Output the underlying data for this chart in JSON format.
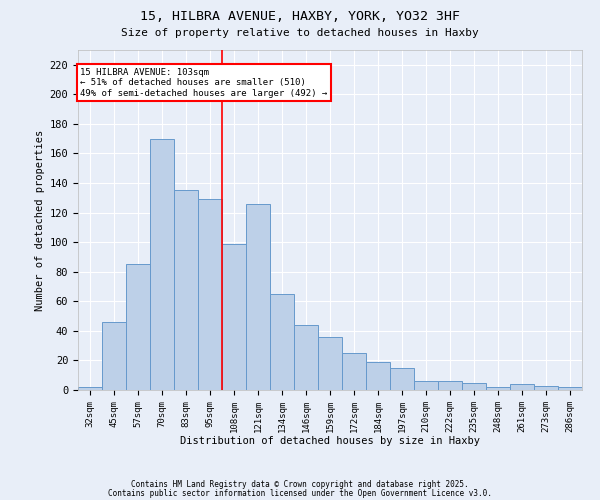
{
  "title1": "15, HILBRA AVENUE, HAXBY, YORK, YO32 3HF",
  "title2": "Size of property relative to detached houses in Haxby",
  "xlabel": "Distribution of detached houses by size in Haxby",
  "ylabel": "Number of detached properties",
  "categories": [
    "32sqm",
    "45sqm",
    "57sqm",
    "70sqm",
    "83sqm",
    "95sqm",
    "108sqm",
    "121sqm",
    "134sqm",
    "146sqm",
    "159sqm",
    "172sqm",
    "184sqm",
    "197sqm",
    "210sqm",
    "222sqm",
    "235sqm",
    "248sqm",
    "261sqm",
    "273sqm",
    "286sqm"
  ],
  "values": [
    2,
    46,
    85,
    170,
    135,
    129,
    99,
    126,
    65,
    44,
    36,
    25,
    19,
    15,
    6,
    6,
    5,
    2,
    4,
    3,
    2
  ],
  "bar_color": "#bdd0e8",
  "bar_edge_color": "#6699cc",
  "background_color": "#e8eef8",
  "grid_color": "#ffffff",
  "vline_x_idx": 5.5,
  "vline_color": "red",
  "annotation_text": "15 HILBRA AVENUE: 103sqm\n← 51% of detached houses are smaller (510)\n49% of semi-detached houses are larger (492) →",
  "annotation_box_color": "white",
  "annotation_box_edge": "red",
  "footer1": "Contains HM Land Registry data © Crown copyright and database right 2025.",
  "footer2": "Contains public sector information licensed under the Open Government Licence v3.0.",
  "ylim": [
    0,
    230
  ],
  "yticks": [
    0,
    20,
    40,
    60,
    80,
    100,
    120,
    140,
    160,
    180,
    200,
    220
  ]
}
